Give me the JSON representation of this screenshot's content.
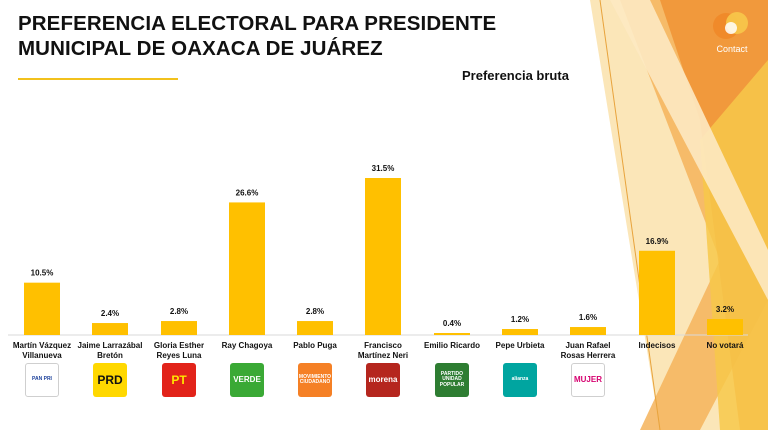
{
  "title": "PREFERENCIA ELECTORAL PARA PRESIDENTE MUNICIPAL DE OAXACA DE JUÁREZ",
  "subtitle": "Preferencia bruta",
  "brand": "Contact",
  "colors": {
    "bar": "#FFC000",
    "accent": "#F2C11C"
  },
  "chart_data": {
    "type": "bar",
    "title": "",
    "xlabel": "",
    "ylabel": "",
    "ylim": [
      0,
      35
    ],
    "grid": false,
    "categories": [
      "Martín Vázquez Villanueva",
      "Jaime Larrazábal Bretón",
      "Gloria Esther Reyes Luna",
      "Ray Chagoya",
      "Pablo Puga",
      "Francisco Martínez Neri",
      "Emilio Ricardo",
      "Pepe Urbieta",
      "Juan Rafael Rosas Herrera",
      "Indecisos",
      "No votará"
    ],
    "category_lines": [
      [
        "Martín Vázquez",
        "Villanueva"
      ],
      [
        "Jaime Larrazábal",
        "Bretón"
      ],
      [
        "Gloria Esther",
        "Reyes Luna"
      ],
      [
        "Ray Chagoya"
      ],
      [
        "Pablo Puga"
      ],
      [
        "Francisco",
        "Martínez Neri"
      ],
      [
        "Emilio Ricardo"
      ],
      [
        "Pepe Urbieta"
      ],
      [
        "Juan Rafael",
        "Rosas Herrera"
      ],
      [
        "Indecisos"
      ],
      [
        "No votará"
      ]
    ],
    "values": [
      10.5,
      2.4,
      2.8,
      26.6,
      2.8,
      31.5,
      0.4,
      1.2,
      1.6,
      16.9,
      3.2
    ],
    "data_labels": [
      "10.5%",
      "2.4%",
      "2.8%",
      "26.6%",
      "2.8%",
      "31.5%",
      "0.4%",
      "1.2%",
      "1.6%",
      "16.9%",
      "3.2%"
    ]
  },
  "party_logos": [
    {
      "text": "PAN PRI",
      "icon": "pan-pri-logo",
      "bg": "#ffffff",
      "fg": "#1a3f9a"
    },
    {
      "text": "PRD",
      "icon": "prd-logo",
      "bg": "#ffd800",
      "fg": "#111111"
    },
    {
      "text": "PT",
      "icon": "pt-logo",
      "bg": "#e2231a",
      "fg": "#ffe600"
    },
    {
      "text": "VERDE",
      "icon": "verde-logo",
      "bg": "#3aa935",
      "fg": "#ffffff"
    },
    {
      "text": "MOVIMIENTO CIUDADANO",
      "icon": "movimiento-ciudadano-logo",
      "bg": "#f58025",
      "fg": "#ffffff"
    },
    {
      "text": "morena",
      "icon": "morena-logo",
      "bg": "#b5261e",
      "fg": "#ffffff"
    },
    {
      "text": "PARTIDO UNIDAD POPULAR",
      "icon": "unidad-popular-logo",
      "bg": "#2e7d32",
      "fg": "#ffffff"
    },
    {
      "text": "alianza",
      "icon": "nueva-alianza-logo",
      "bg": "#00a5a0",
      "fg": "#ffffff"
    },
    {
      "text": "MUJER",
      "icon": "mujer-logo",
      "bg": "#ffffff",
      "fg": "#d6006f"
    }
  ]
}
